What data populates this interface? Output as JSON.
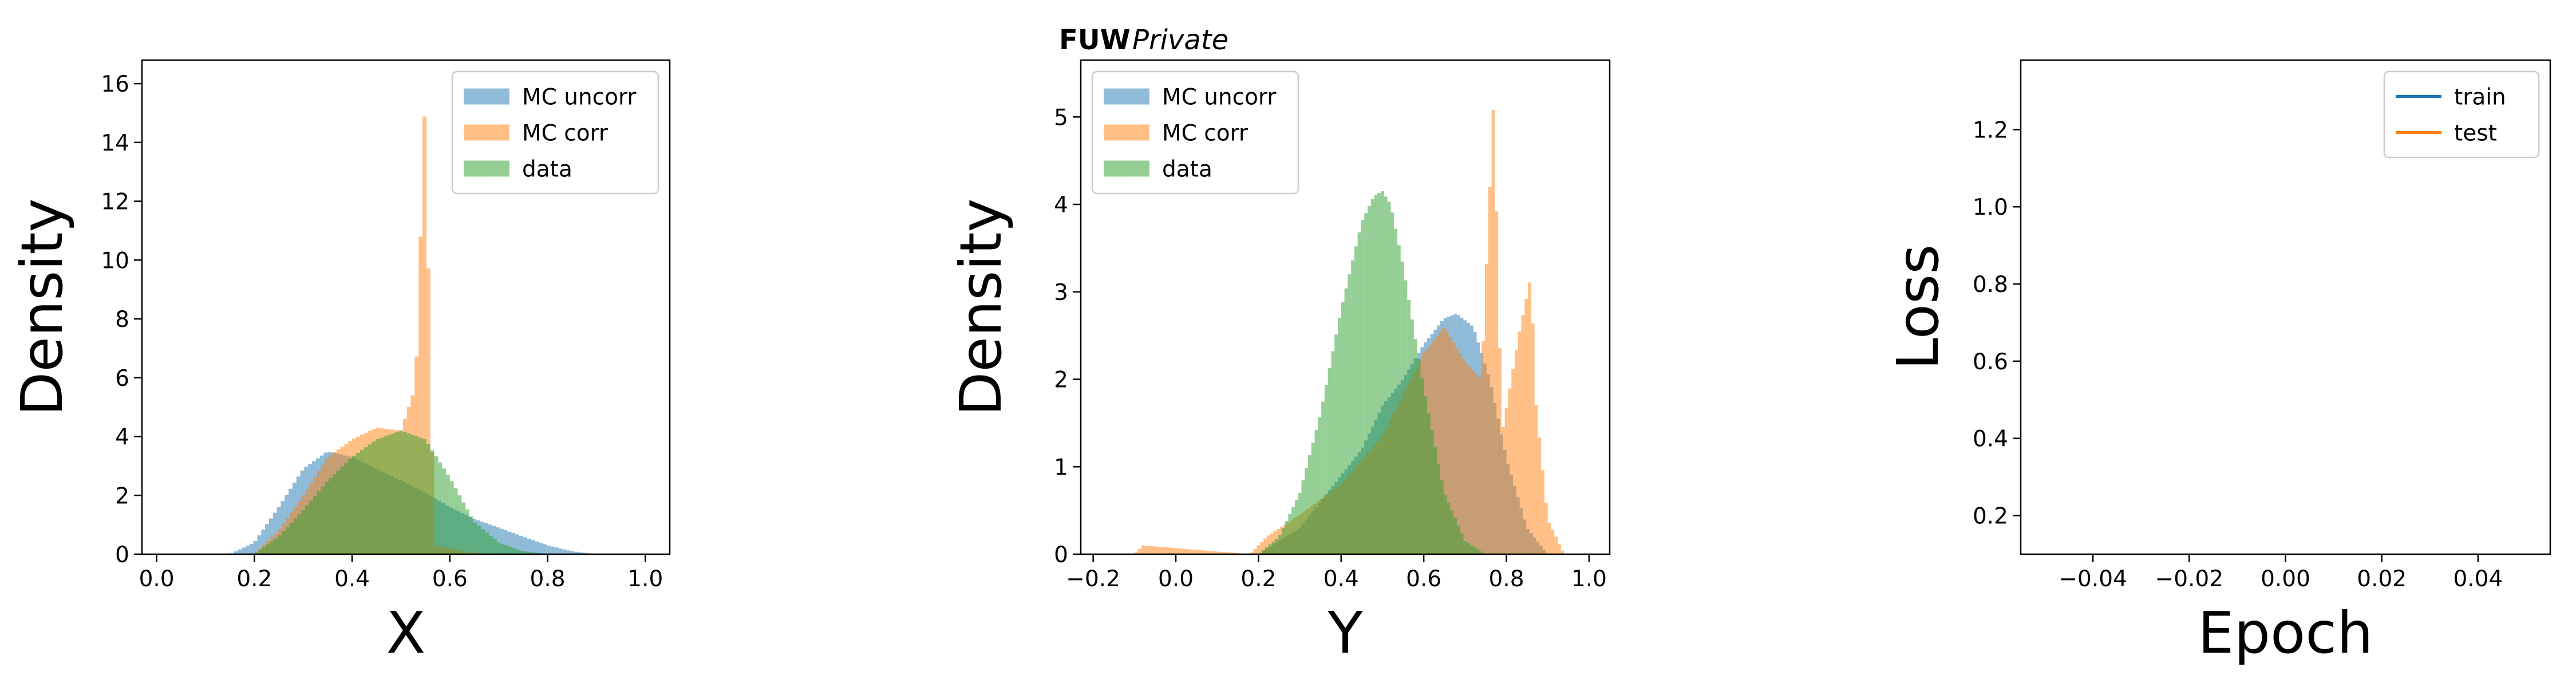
{
  "title": {
    "bold": "FUW",
    "italic": "Private"
  },
  "chart_data": [
    {
      "type": "histogram",
      "xlabel": "X",
      "ylabel": "Density",
      "xlim": [
        -0.03,
        1.05
      ],
      "ylim": [
        0,
        16.8
      ],
      "xticks": [
        0.0,
        0.2,
        0.4,
        0.6,
        0.8,
        1.0
      ],
      "xtick_labels": [
        "0.0",
        "0.2",
        "0.4",
        "0.6",
        "0.8",
        "1.0"
      ],
      "yticks": [
        0,
        2,
        4,
        6,
        8,
        10,
        12,
        14,
        16
      ],
      "ytick_labels": [
        "0",
        "2",
        "4",
        "6",
        "8",
        "10",
        "12",
        "14",
        "16"
      ],
      "legend": {
        "placement": "top-right",
        "entries": [
          "MC uncorr",
          "MC corr",
          "data"
        ]
      },
      "series": [
        {
          "name": "MC uncorr",
          "color": "#1f77b4",
          "opacity": 0.5,
          "x": [
            0.15,
            0.2,
            0.25,
            0.3,
            0.35,
            0.4,
            0.45,
            0.5,
            0.55,
            0.6,
            0.65,
            0.7,
            0.75,
            0.8,
            0.85,
            0.9
          ],
          "y": [
            0,
            0.4,
            1.6,
            2.9,
            3.5,
            3.3,
            2.9,
            2.5,
            2.1,
            1.6,
            1.2,
            0.9,
            0.6,
            0.3,
            0.1,
            0
          ]
        },
        {
          "name": "MC corr",
          "color": "#ff7f0e",
          "opacity": 0.5,
          "x": [
            0.2,
            0.25,
            0.3,
            0.35,
            0.4,
            0.45,
            0.5,
            0.53,
            0.55,
            0.56,
            0.57,
            0.6,
            0.65,
            0.7
          ],
          "y": [
            0,
            0.8,
            2.0,
            3.3,
            3.9,
            4.3,
            4.2,
            5.7,
            15.9,
            5.6,
            0.3,
            0.2,
            0.05,
            0
          ]
        },
        {
          "name": "data",
          "color": "#2ca02c",
          "opacity": 0.5,
          "x": [
            0.2,
            0.25,
            0.3,
            0.35,
            0.4,
            0.45,
            0.5,
            0.55,
            0.6,
            0.65,
            0.7,
            0.75,
            0.8
          ],
          "y": [
            0,
            0.6,
            1.5,
            2.5,
            3.3,
            3.9,
            4.2,
            3.9,
            2.6,
            1.1,
            0.4,
            0.1,
            0
          ]
        }
      ]
    },
    {
      "type": "histogram",
      "xlabel": "Y",
      "ylabel": "Density",
      "xlim": [
        -0.23,
        1.05
      ],
      "ylim": [
        0,
        5.65
      ],
      "xticks": [
        -0.2,
        0.0,
        0.2,
        0.4,
        0.6,
        0.8,
        1.0
      ],
      "xtick_labels": [
        "−0.2",
        "0.0",
        "0.2",
        "0.4",
        "0.6",
        "0.8",
        "1.0"
      ],
      "yticks": [
        0,
        1,
        2,
        3,
        4,
        5
      ],
      "ytick_labels": [
        "0",
        "1",
        "2",
        "3",
        "4",
        "5"
      ],
      "legend": {
        "placement": "top-left",
        "entries": [
          "MC uncorr",
          "MC corr",
          "data"
        ]
      },
      "series": [
        {
          "name": "MC uncorr",
          "color": "#1f77b4",
          "opacity": 0.5,
          "x": [
            0.2,
            0.3,
            0.4,
            0.45,
            0.5,
            0.55,
            0.6,
            0.65,
            0.68,
            0.72,
            0.76,
            0.8,
            0.85,
            0.9
          ],
          "y": [
            0,
            0.3,
            0.9,
            1.2,
            1.7,
            2.0,
            2.4,
            2.7,
            2.75,
            2.6,
            2.0,
            1.1,
            0.3,
            0
          ]
        },
        {
          "name": "MC corr",
          "color": "#ff7f0e",
          "opacity": 0.5,
          "x": [
            -0.1,
            -0.08,
            0.18,
            0.22,
            0.3,
            0.4,
            0.5,
            0.6,
            0.65,
            0.7,
            0.74,
            0.77,
            0.78,
            0.79,
            0.83,
            0.86,
            0.87,
            0.9,
            0.94
          ],
          "y": [
            0,
            0.1,
            0,
            0.2,
            0.45,
            0.8,
            1.35,
            2.3,
            2.6,
            2.2,
            2.0,
            5.3,
            3.0,
            1.4,
            2.5,
            3.2,
            1.8,
            0.4,
            0
          ]
        },
        {
          "name": "data",
          "color": "#2ca02c",
          "opacity": 0.5,
          "x": [
            0.2,
            0.25,
            0.3,
            0.35,
            0.4,
            0.45,
            0.48,
            0.5,
            0.52,
            0.55,
            0.6,
            0.65,
            0.7,
            0.75
          ],
          "y": [
            0,
            0.2,
            0.7,
            1.6,
            2.8,
            3.8,
            4.1,
            4.15,
            4.0,
            3.3,
            1.9,
            0.7,
            0.15,
            0
          ]
        }
      ]
    },
    {
      "type": "line",
      "xlabel": "Epoch",
      "ylabel": "Loss",
      "xlim": [
        -0.055,
        0.055
      ],
      "ylim": [
        0.1,
        1.38
      ],
      "xticks": [
        -0.04,
        -0.02,
        0.0,
        0.02,
        0.04
      ],
      "xtick_labels": [
        "−0.04",
        "−0.02",
        "0.00",
        "0.02",
        "0.04"
      ],
      "yticks": [
        0.2,
        0.4,
        0.6,
        0.8,
        1.0,
        1.2
      ],
      "ytick_labels": [
        "0.2",
        "0.4",
        "0.6",
        "0.8",
        "1.0",
        "1.2"
      ],
      "legend": {
        "placement": "top-right",
        "entries": [
          "train",
          "test"
        ]
      },
      "series": [
        {
          "name": "train",
          "color": "#1f77b4",
          "x": [],
          "y": []
        },
        {
          "name": "test",
          "color": "#ff7f0e",
          "x": [],
          "y": []
        }
      ]
    }
  ]
}
